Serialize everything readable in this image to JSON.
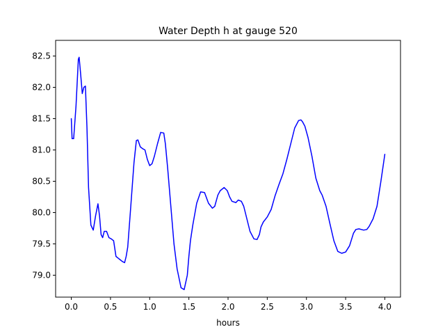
{
  "chart_data": {
    "type": "line",
    "title": "Water Depth h at gauge 520",
    "xlabel": "hours",
    "ylabel": "",
    "xlim": [
      -0.2,
      4.2
    ],
    "ylim": [
      78.65,
      82.75
    ],
    "xticks": [
      0.0,
      0.5,
      1.0,
      1.5,
      2.0,
      2.5,
      3.0,
      3.5,
      4.0
    ],
    "xtick_labels": [
      "0.0",
      "0.5",
      "1.0",
      "1.5",
      "2.0",
      "2.5",
      "3.0",
      "3.5",
      "4.0"
    ],
    "yticks": [
      79.0,
      79.5,
      80.0,
      80.5,
      81.0,
      81.5,
      82.0,
      82.5
    ],
    "ytick_labels": [
      "79.0",
      "79.5",
      "80.0",
      "80.5",
      "81.0",
      "81.5",
      "82.0",
      "82.5"
    ],
    "grid": false,
    "series": [
      {
        "color": "#0000ff",
        "x": [
          0.0,
          0.01,
          0.03,
          0.06,
          0.09,
          0.1,
          0.12,
          0.14,
          0.16,
          0.18,
          0.2,
          0.22,
          0.25,
          0.28,
          0.31,
          0.34,
          0.36,
          0.38,
          0.4,
          0.42,
          0.45,
          0.48,
          0.51,
          0.54,
          0.57,
          0.6,
          0.62,
          0.65,
          0.68,
          0.7,
          0.72,
          0.75,
          0.8,
          0.83,
          0.85,
          0.88,
          0.91,
          0.94,
          0.97,
          1.0,
          1.03,
          1.06,
          1.1,
          1.14,
          1.18,
          1.2,
          1.23,
          1.27,
          1.31,
          1.35,
          1.4,
          1.44,
          1.48,
          1.5,
          1.52,
          1.55,
          1.6,
          1.65,
          1.7,
          1.75,
          1.8,
          1.83,
          1.87,
          1.9,
          1.95,
          1.99,
          2.02,
          2.05,
          2.1,
          2.13,
          2.17,
          2.2,
          2.24,
          2.28,
          2.33,
          2.37,
          2.4,
          2.42,
          2.45,
          2.5,
          2.55,
          2.6,
          2.65,
          2.7,
          2.75,
          2.8,
          2.85,
          2.9,
          2.93,
          2.95,
          2.98,
          3.02,
          3.07,
          3.12,
          3.17,
          3.2,
          3.25,
          3.3,
          3.35,
          3.4,
          3.45,
          3.5,
          3.55,
          3.6,
          3.63,
          3.67,
          3.7,
          3.73,
          3.77,
          3.8,
          3.85,
          3.9,
          3.95,
          4.0
        ],
        "y": [
          81.5,
          81.18,
          81.18,
          81.7,
          82.45,
          82.48,
          82.2,
          81.9,
          82.0,
          82.02,
          81.35,
          80.4,
          79.8,
          79.72,
          79.95,
          80.14,
          79.95,
          79.65,
          79.6,
          79.7,
          79.7,
          79.6,
          79.58,
          79.55,
          79.3,
          79.27,
          79.25,
          79.22,
          79.2,
          79.3,
          79.45,
          79.95,
          80.8,
          81.15,
          81.16,
          81.05,
          81.02,
          81.0,
          80.85,
          80.75,
          80.78,
          80.9,
          81.1,
          81.28,
          81.27,
          81.1,
          80.7,
          80.1,
          79.5,
          79.1,
          78.8,
          78.77,
          79.0,
          79.3,
          79.55,
          79.8,
          80.15,
          80.33,
          80.32,
          80.15,
          80.07,
          80.1,
          80.28,
          80.35,
          80.4,
          80.35,
          80.25,
          80.18,
          80.16,
          80.2,
          80.18,
          80.1,
          79.9,
          79.7,
          79.58,
          79.57,
          79.65,
          79.77,
          79.85,
          79.93,
          80.05,
          80.27,
          80.45,
          80.62,
          80.85,
          81.1,
          81.35,
          81.47,
          81.48,
          81.45,
          81.38,
          81.2,
          80.9,
          80.55,
          80.35,
          80.28,
          80.1,
          79.82,
          79.55,
          79.38,
          79.35,
          79.37,
          79.47,
          79.67,
          79.73,
          79.74,
          79.73,
          79.72,
          79.73,
          79.78,
          79.9,
          80.1,
          80.5,
          80.93
        ]
      }
    ]
  }
}
